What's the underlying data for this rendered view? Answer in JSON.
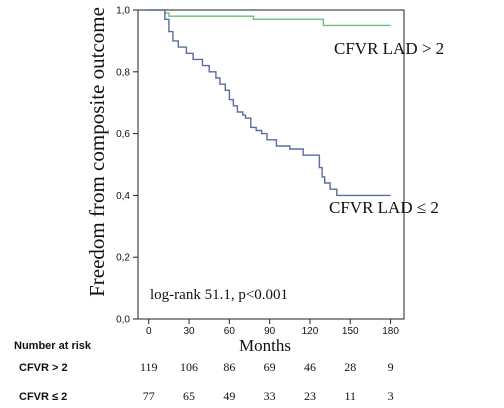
{
  "chart_data": {
    "type": "line",
    "subtype": "kaplan-meier step curve",
    "ylabel": "Freedom from composite outcome",
    "xlabel": "Months",
    "xlim": [
      -8,
      190
    ],
    "ylim": [
      0,
      1.0
    ],
    "x_ticks": [
      0,
      30,
      60,
      90,
      120,
      150,
      180
    ],
    "y_ticks": [
      0.0,
      0.2,
      0.4,
      0.6,
      0.8,
      1.0
    ],
    "y_tick_labels": [
      "0,0",
      "0,2",
      "0,4",
      "0,6",
      "0,8",
      "1,0"
    ],
    "grid": false,
    "legend": "none",
    "annotation": "log-rank 51.1, p<0.001",
    "series": [
      {
        "name": "CFVR LAD > 2",
        "color": "#6dbf7a",
        "points": [
          [
            0,
            1.0
          ],
          [
            12,
            1.0
          ],
          [
            12,
            0.99
          ],
          [
            15,
            0.99
          ],
          [
            15,
            0.98
          ],
          [
            78,
            0.98
          ],
          [
            78,
            0.97
          ],
          [
            130,
            0.97
          ],
          [
            130,
            0.95
          ],
          [
            180,
            0.95
          ]
        ]
      },
      {
        "name": "CFVR LAD ≤ 2",
        "color": "#5a6da0",
        "points": [
          [
            0,
            1.0
          ],
          [
            12,
            1.0
          ],
          [
            12,
            0.97
          ],
          [
            15,
            0.97
          ],
          [
            15,
            0.93
          ],
          [
            18,
            0.93
          ],
          [
            18,
            0.9
          ],
          [
            22,
            0.9
          ],
          [
            22,
            0.88
          ],
          [
            28,
            0.88
          ],
          [
            28,
            0.86
          ],
          [
            33,
            0.86
          ],
          [
            33,
            0.84
          ],
          [
            40,
            0.84
          ],
          [
            40,
            0.82
          ],
          [
            45,
            0.82
          ],
          [
            45,
            0.8
          ],
          [
            50,
            0.8
          ],
          [
            50,
            0.78
          ],
          [
            53,
            0.78
          ],
          [
            53,
            0.76
          ],
          [
            57,
            0.76
          ],
          [
            57,
            0.74
          ],
          [
            60,
            0.74
          ],
          [
            60,
            0.71
          ],
          [
            63,
            0.71
          ],
          [
            63,
            0.69
          ],
          [
            66,
            0.69
          ],
          [
            66,
            0.67
          ],
          [
            70,
            0.67
          ],
          [
            70,
            0.66
          ],
          [
            72,
            0.66
          ],
          [
            72,
            0.65
          ],
          [
            76,
            0.65
          ],
          [
            76,
            0.62
          ],
          [
            80,
            0.62
          ],
          [
            80,
            0.61
          ],
          [
            84,
            0.61
          ],
          [
            84,
            0.6
          ],
          [
            88,
            0.6
          ],
          [
            88,
            0.58
          ],
          [
            95,
            0.58
          ],
          [
            95,
            0.56
          ],
          [
            105,
            0.56
          ],
          [
            105,
            0.55
          ],
          [
            115,
            0.55
          ],
          [
            115,
            0.53
          ],
          [
            127,
            0.53
          ],
          [
            127,
            0.49
          ],
          [
            129,
            0.49
          ],
          [
            129,
            0.46
          ],
          [
            131,
            0.46
          ],
          [
            131,
            0.44
          ],
          [
            135,
            0.44
          ],
          [
            135,
            0.42
          ],
          [
            140,
            0.42
          ],
          [
            140,
            0.4
          ],
          [
            180,
            0.4
          ]
        ]
      }
    ],
    "curve_labels": [
      "CFVR LAD > 2",
      "CFVR LAD ≤ 2"
    ],
    "risk_table": {
      "title": "Number at risk",
      "rows": [
        {
          "label": "CFVR > 2",
          "values": [
            "119",
            "106",
            "86",
            "69",
            "46",
            "28",
            "9"
          ]
        },
        {
          "label": "CFVR ≤ 2",
          "values": [
            "77",
            "65",
            "49",
            "33",
            "23",
            "11",
            "3"
          ]
        }
      ]
    }
  }
}
